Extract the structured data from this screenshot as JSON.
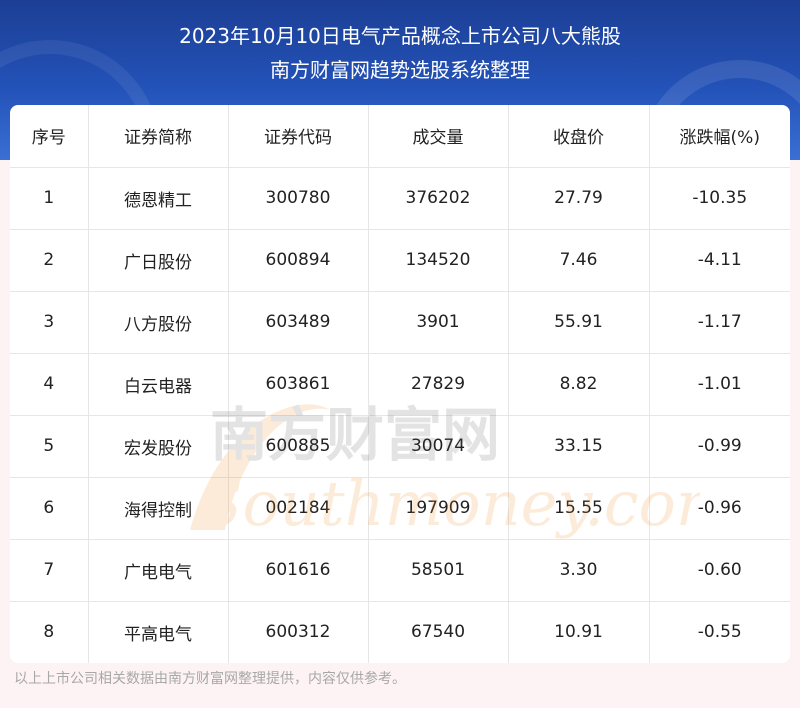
{
  "title": {
    "line1": "2023年10月10日电气产品概念上市公司八大熊股",
    "line2": "南方财富网趋势选股系统整理"
  },
  "table": {
    "headers": [
      "序号",
      "证券简称",
      "证券代码",
      "成交量",
      "收盘价",
      "涨跌幅(%)"
    ],
    "rows": [
      [
        "1",
        "德恩精工",
        "300780",
        "376202",
        "27.79",
        "-10.35"
      ],
      [
        "2",
        "广日股份",
        "600894",
        "134520",
        "7.46",
        "-4.11"
      ],
      [
        "3",
        "八方股份",
        "603489",
        "3901",
        "55.91",
        "-1.17"
      ],
      [
        "4",
        "白云电器",
        "603861",
        "27829",
        "8.82",
        "-1.01"
      ],
      [
        "5",
        "宏发股份",
        "600885",
        "30074",
        "33.15",
        "-0.99"
      ],
      [
        "6",
        "海得控制",
        "002184",
        "197909",
        "15.55",
        "-0.96"
      ],
      [
        "7",
        "广电电气",
        "601616",
        "58501",
        "3.30",
        "-0.60"
      ],
      [
        "8",
        "平高电气",
        "600312",
        "67540",
        "10.91",
        "-0.55"
      ]
    ]
  },
  "watermark": {
    "cn": "南方财富网",
    "en": "Southmoney.com"
  },
  "footer": "以上上市公司相关数据由南方财富网整理提供，内容仅供参考。"
}
